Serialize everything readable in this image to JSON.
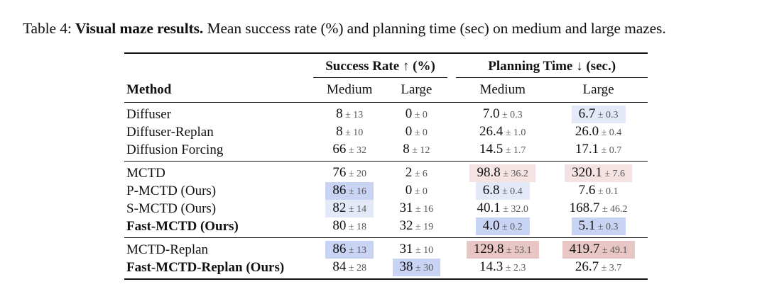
{
  "caption": {
    "prefix": "Table 4:",
    "bold": "Visual maze results.",
    "text": "Mean success rate (%) and planning time (sec) on medium and large mazes."
  },
  "headers": {
    "group1": "Success Rate ↑ (%)",
    "group2": "Planning Time ↓ (sec.)",
    "method": "Method",
    "sub": [
      "Medium",
      "Large",
      "Medium",
      "Large"
    ]
  },
  "colors": {
    "blue_strong": "#c9d3f4",
    "blue_light": "#e4e9f8",
    "red_strong": "#e9c6c6",
    "red_light": "#f5e3e3"
  },
  "rows": [
    {
      "method": "Diffuser",
      "bold": false,
      "cells": [
        {
          "m": "8",
          "s": "13"
        },
        {
          "m": "0",
          "s": "0"
        },
        {
          "m": "7.0",
          "s": "0.3"
        },
        {
          "m": "6.7",
          "s": "0.3",
          "hl": "blue_light"
        }
      ]
    },
    {
      "method": "Diffuser-Replan",
      "bold": false,
      "cells": [
        {
          "m": "8",
          "s": "10"
        },
        {
          "m": "0",
          "s": "0"
        },
        {
          "m": "26.4",
          "s": "1.0"
        },
        {
          "m": "26.0",
          "s": "0.4"
        }
      ]
    },
    {
      "method": "Diffusion Forcing",
      "bold": false,
      "cells": [
        {
          "m": "66",
          "s": "32"
        },
        {
          "m": "8",
          "s": "12"
        },
        {
          "m": "14.5",
          "s": "1.7"
        },
        {
          "m": "17.1",
          "s": "0.7"
        }
      ]
    },
    {
      "method": "MCTD",
      "bold": false,
      "cells": [
        {
          "m": "76",
          "s": "20"
        },
        {
          "m": "2",
          "s": "6"
        },
        {
          "m": "98.8",
          "s": "36.2",
          "hl": "red_light"
        },
        {
          "m": "320.1",
          "s": "7.6",
          "hl": "red_light"
        }
      ]
    },
    {
      "method": "P-MCTD (Ours)",
      "bold": false,
      "cells": [
        {
          "m": "86",
          "s": "16",
          "hl": "blue_strong"
        },
        {
          "m": "0",
          "s": "0"
        },
        {
          "m": "6.8",
          "s": "0.4",
          "hl": "blue_light"
        },
        {
          "m": "7.6",
          "s": "0.1"
        }
      ]
    },
    {
      "method": "S-MCTD (Ours)",
      "bold": false,
      "cells": [
        {
          "m": "82",
          "s": "14",
          "hl": "blue_light"
        },
        {
          "m": "31",
          "s": "16"
        },
        {
          "m": "40.1",
          "s": "32.0"
        },
        {
          "m": "168.7",
          "s": "46.2"
        }
      ]
    },
    {
      "method": "Fast-MCTD (Ours)",
      "bold": true,
      "cells": [
        {
          "m": "80",
          "s": "18"
        },
        {
          "m": "32",
          "s": "19"
        },
        {
          "m": "4.0",
          "s": "0.2",
          "hl": "blue_strong"
        },
        {
          "m": "5.1",
          "s": "0.3",
          "hl": "blue_strong"
        }
      ]
    },
    {
      "method": "MCTD-Replan",
      "bold": false,
      "cells": [
        {
          "m": "86",
          "s": "13",
          "hl": "blue_strong"
        },
        {
          "m": "31",
          "s": "10"
        },
        {
          "m": "129.8",
          "s": "53.1",
          "hl": "red_strong"
        },
        {
          "m": "419.7",
          "s": "49.1",
          "hl": "red_strong"
        }
      ]
    },
    {
      "method": "Fast-MCTD-Replan (Ours)",
      "bold": true,
      "cells": [
        {
          "m": "84",
          "s": "28"
        },
        {
          "m": "38",
          "s": "30",
          "hl": "blue_strong"
        },
        {
          "m": "14.3",
          "s": "2.3"
        },
        {
          "m": "26.7",
          "s": "3.7"
        }
      ]
    }
  ]
}
